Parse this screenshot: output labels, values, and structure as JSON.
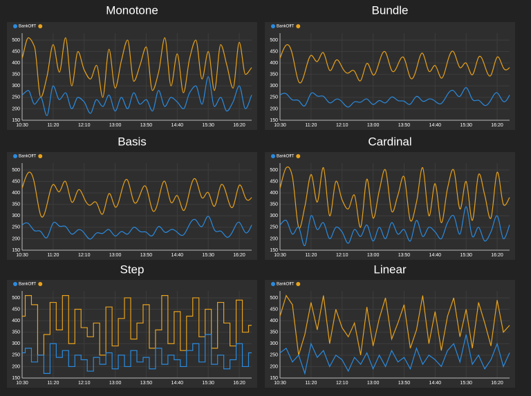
{
  "chart_data": [
    {
      "type": "line",
      "interpolation": "monotone",
      "title": "Monotone",
      "x": [
        "10:30",
        "10:40",
        "10:50",
        "11:00",
        "11:10",
        "11:20",
        "11:30",
        "11:40",
        "11:50",
        "12:00",
        "12:10",
        "12:20",
        "12:30",
        "12:40",
        "12:50",
        "13:00",
        "13:10",
        "13:20",
        "13:30",
        "13:40",
        "13:50",
        "14:00",
        "14:10",
        "14:20",
        "14:30",
        "14:40",
        "14:50",
        "15:00",
        "15:10",
        "15:20",
        "15:30",
        "15:40",
        "15:50",
        "16:00",
        "16:10",
        "16:20",
        "16:30",
        "16:40"
      ],
      "xticks": [
        "10:30",
        "11:20",
        "12:10",
        "13:00",
        "13:50",
        "14:40",
        "15:30",
        "16:20"
      ],
      "ylim": [
        150,
        530
      ],
      "yticks": [
        150,
        200,
        250,
        300,
        350,
        400,
        450,
        500
      ],
      "grid": true,
      "series": [
        {
          "name": "BankOffT",
          "color": "#2a8be0",
          "values": [
            260,
            280,
            220,
            250,
            170,
            300,
            240,
            270,
            200,
            250,
            230,
            180,
            240,
            210,
            260,
            190,
            250,
            200,
            270,
            220,
            240,
            190,
            280,
            210,
            250,
            230,
            200,
            270,
            300,
            220,
            340,
            210,
            250,
            190,
            230,
            300,
            200,
            260
          ]
        },
        {
          "color": "#e8a21c",
          "values": [
            420,
            510,
            470,
            250,
            340,
            480,
            360,
            510,
            300,
            450,
            370,
            330,
            390,
            250,
            460,
            290,
            410,
            500,
            320,
            390,
            470,
            280,
            360,
            510,
            300,
            440,
            270,
            420,
            500,
            330,
            450,
            280,
            480,
            390,
            290,
            490,
            350,
            380
          ]
        }
      ]
    },
    {
      "type": "line",
      "interpolation": "bundle",
      "title": "Bundle",
      "x": [
        "10:30",
        "10:40",
        "10:50",
        "11:00",
        "11:10",
        "11:20",
        "11:30",
        "11:40",
        "11:50",
        "12:00",
        "12:10",
        "12:20",
        "12:30",
        "12:40",
        "12:50",
        "13:00",
        "13:10",
        "13:20",
        "13:30",
        "13:40",
        "13:50",
        "14:00",
        "14:10",
        "14:20",
        "14:30",
        "14:40",
        "14:50",
        "15:00",
        "15:10",
        "15:20",
        "15:30",
        "15:40",
        "15:50",
        "16:00",
        "16:10",
        "16:20",
        "16:30",
        "16:40"
      ],
      "xticks": [
        "10:30",
        "11:20",
        "12:10",
        "13:00",
        "13:50",
        "14:40",
        "15:30",
        "16:20"
      ],
      "ylim": [
        150,
        530
      ],
      "yticks": [
        150,
        200,
        250,
        300,
        350,
        400,
        450,
        500
      ],
      "grid": true,
      "series": [
        {
          "name": "BankOffT",
          "color": "#2a8be0",
          "values": [
            260,
            280,
            220,
            250,
            170,
            300,
            240,
            270,
            200,
            250,
            230,
            180,
            240,
            210,
            260,
            190,
            250,
            200,
            270,
            220,
            240,
            190,
            280,
            210,
            250,
            230,
            200,
            270,
            300,
            220,
            340,
            210,
            250,
            190,
            230,
            300,
            200,
            260
          ]
        },
        {
          "color": "#e8a21c",
          "values": [
            420,
            510,
            470,
            250,
            340,
            480,
            360,
            510,
            300,
            450,
            370,
            330,
            390,
            250,
            460,
            290,
            410,
            500,
            320,
            390,
            470,
            280,
            360,
            510,
            300,
            440,
            270,
            420,
            500,
            330,
            450,
            280,
            480,
            390,
            290,
            490,
            350,
            380
          ]
        }
      ]
    },
    {
      "type": "line",
      "interpolation": "basis",
      "title": "Basis",
      "x": [
        "10:30",
        "10:40",
        "10:50",
        "11:00",
        "11:10",
        "11:20",
        "11:30",
        "11:40",
        "11:50",
        "12:00",
        "12:10",
        "12:20",
        "12:30",
        "12:40",
        "12:50",
        "13:00",
        "13:10",
        "13:20",
        "13:30",
        "13:40",
        "13:50",
        "14:00",
        "14:10",
        "14:20",
        "14:30",
        "14:40",
        "14:50",
        "15:00",
        "15:10",
        "15:20",
        "15:30",
        "15:40",
        "15:50",
        "16:00",
        "16:10",
        "16:20",
        "16:30",
        "16:40"
      ],
      "xticks": [
        "10:30",
        "11:20",
        "12:10",
        "13:00",
        "13:50",
        "14:40",
        "15:30",
        "16:20"
      ],
      "ylim": [
        150,
        530
      ],
      "yticks": [
        150,
        200,
        250,
        300,
        350,
        400,
        450,
        500
      ],
      "grid": true,
      "series": [
        {
          "name": "BankOffT",
          "color": "#2a8be0",
          "values": [
            260,
            280,
            220,
            250,
            170,
            300,
            240,
            270,
            200,
            250,
            230,
            180,
            240,
            210,
            260,
            190,
            250,
            200,
            270,
            220,
            240,
            190,
            280,
            210,
            250,
            230,
            200,
            270,
            300,
            220,
            340,
            210,
            250,
            190,
            230,
            300,
            200,
            260
          ]
        },
        {
          "color": "#e8a21c",
          "values": [
            420,
            510,
            470,
            250,
            340,
            480,
            360,
            510,
            300,
            450,
            370,
            330,
            390,
            250,
            460,
            290,
            410,
            500,
            320,
            390,
            470,
            280,
            360,
            510,
            300,
            440,
            270,
            420,
            500,
            330,
            450,
            280,
            480,
            390,
            290,
            490,
            350,
            380
          ]
        }
      ]
    },
    {
      "type": "line",
      "interpolation": "cardinal",
      "title": "Cardinal",
      "x": [
        "10:30",
        "10:40",
        "10:50",
        "11:00",
        "11:10",
        "11:20",
        "11:30",
        "11:40",
        "11:50",
        "12:00",
        "12:10",
        "12:20",
        "12:30",
        "12:40",
        "12:50",
        "13:00",
        "13:10",
        "13:20",
        "13:30",
        "13:40",
        "13:50",
        "14:00",
        "14:10",
        "14:20",
        "14:30",
        "14:40",
        "14:50",
        "15:00",
        "15:10",
        "15:20",
        "15:30",
        "15:40",
        "15:50",
        "16:00",
        "16:10",
        "16:20",
        "16:30",
        "16:40"
      ],
      "xticks": [
        "10:30",
        "11:20",
        "12:10",
        "13:00",
        "13:50",
        "14:40",
        "15:30",
        "16:20"
      ],
      "ylim": [
        150,
        530
      ],
      "yticks": [
        150,
        200,
        250,
        300,
        350,
        400,
        450,
        500
      ],
      "grid": true,
      "series": [
        {
          "name": "BankOffT",
          "color": "#2a8be0",
          "values": [
            260,
            280,
            220,
            250,
            170,
            300,
            240,
            270,
            200,
            250,
            230,
            180,
            240,
            210,
            260,
            190,
            250,
            200,
            270,
            220,
            240,
            190,
            280,
            210,
            250,
            230,
            200,
            270,
            300,
            220,
            340,
            210,
            250,
            190,
            230,
            300,
            200,
            260
          ]
        },
        {
          "color": "#e8a21c",
          "values": [
            420,
            510,
            470,
            250,
            340,
            480,
            360,
            510,
            300,
            450,
            370,
            330,
            390,
            250,
            460,
            290,
            410,
            500,
            320,
            390,
            470,
            280,
            360,
            510,
            300,
            440,
            270,
            420,
            500,
            330,
            450,
            280,
            480,
            390,
            290,
            490,
            350,
            380
          ]
        }
      ]
    },
    {
      "type": "line",
      "interpolation": "step",
      "title": "Step",
      "x": [
        "10:30",
        "10:40",
        "10:50",
        "11:00",
        "11:10",
        "11:20",
        "11:30",
        "11:40",
        "11:50",
        "12:00",
        "12:10",
        "12:20",
        "12:30",
        "12:40",
        "12:50",
        "13:00",
        "13:10",
        "13:20",
        "13:30",
        "13:40",
        "13:50",
        "14:00",
        "14:10",
        "14:20",
        "14:30",
        "14:40",
        "14:50",
        "15:00",
        "15:10",
        "15:20",
        "15:30",
        "15:40",
        "15:50",
        "16:00",
        "16:10",
        "16:20",
        "16:30",
        "16:40"
      ],
      "xticks": [
        "10:30",
        "11:20",
        "12:10",
        "13:00",
        "13:50",
        "14:40",
        "15:30",
        "16:20"
      ],
      "ylim": [
        150,
        530
      ],
      "yticks": [
        150,
        200,
        250,
        300,
        350,
        400,
        450,
        500
      ],
      "grid": true,
      "series": [
        {
          "name": "BankOffT",
          "color": "#2a8be0",
          "values": [
            260,
            280,
            220,
            250,
            170,
            300,
            240,
            270,
            200,
            250,
            230,
            180,
            240,
            210,
            260,
            190,
            250,
            200,
            270,
            220,
            240,
            190,
            280,
            210,
            250,
            230,
            200,
            270,
            300,
            220,
            340,
            210,
            250,
            190,
            230,
            300,
            200,
            260
          ]
        },
        {
          "color": "#e8a21c",
          "values": [
            420,
            510,
            470,
            250,
            340,
            480,
            360,
            510,
            300,
            450,
            370,
            330,
            390,
            250,
            460,
            290,
            410,
            500,
            320,
            390,
            470,
            280,
            360,
            510,
            300,
            440,
            270,
            420,
            500,
            330,
            450,
            280,
            480,
            390,
            290,
            490,
            350,
            380
          ]
        }
      ]
    },
    {
      "type": "line",
      "interpolation": "linear",
      "title": "Linear",
      "x": [
        "10:30",
        "10:40",
        "10:50",
        "11:00",
        "11:10",
        "11:20",
        "11:30",
        "11:40",
        "11:50",
        "12:00",
        "12:10",
        "12:20",
        "12:30",
        "12:40",
        "12:50",
        "13:00",
        "13:10",
        "13:20",
        "13:30",
        "13:40",
        "13:50",
        "14:00",
        "14:10",
        "14:20",
        "14:30",
        "14:40",
        "14:50",
        "15:00",
        "15:10",
        "15:20",
        "15:30",
        "15:40",
        "15:50",
        "16:00",
        "16:10",
        "16:20",
        "16:30",
        "16:40"
      ],
      "xticks": [
        "10:30",
        "11:20",
        "12:10",
        "13:00",
        "13:50",
        "14:40",
        "15:30",
        "16:20"
      ],
      "ylim": [
        150,
        530
      ],
      "yticks": [
        150,
        200,
        250,
        300,
        350,
        400,
        450,
        500
      ],
      "grid": true,
      "series": [
        {
          "name": "BankOffT",
          "color": "#2a8be0",
          "values": [
            260,
            280,
            220,
            250,
            170,
            300,
            240,
            270,
            200,
            250,
            230,
            180,
            240,
            210,
            260,
            190,
            250,
            200,
            270,
            220,
            240,
            190,
            280,
            210,
            250,
            230,
            200,
            270,
            300,
            220,
            340,
            210,
            250,
            190,
            230,
            300,
            200,
            260
          ]
        },
        {
          "color": "#e8a21c",
          "values": [
            420,
            510,
            470,
            250,
            340,
            480,
            360,
            510,
            300,
            450,
            370,
            330,
            390,
            250,
            460,
            290,
            410,
            500,
            320,
            390,
            470,
            280,
            360,
            510,
            300,
            440,
            270,
            420,
            500,
            330,
            450,
            280,
            480,
            390,
            290,
            490,
            350,
            380
          ]
        }
      ]
    }
  ]
}
